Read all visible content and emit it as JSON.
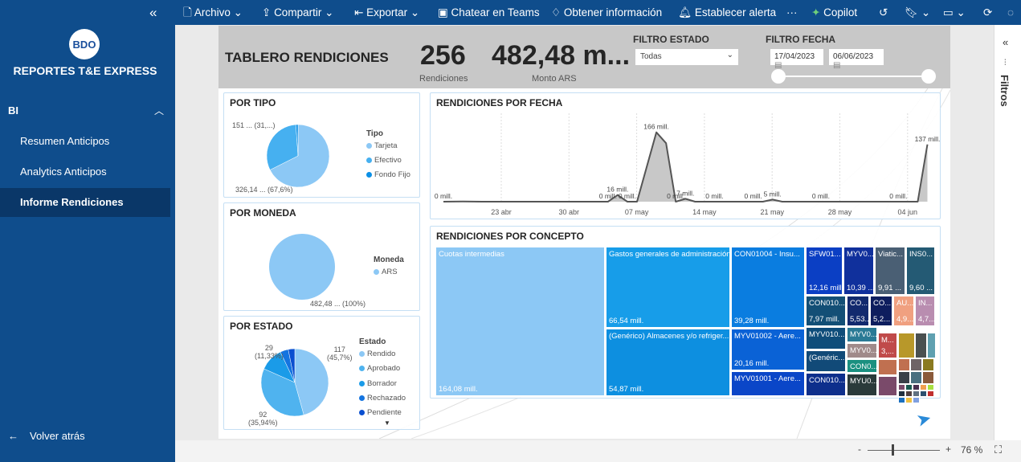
{
  "sidebar": {
    "logo": "BDO",
    "title": "REPORTES T&E EXPRESS",
    "section": "BI",
    "items": [
      {
        "label": "Resumen Anticipos"
      },
      {
        "label": "Analytics Anticipos"
      },
      {
        "label": "Informe Rendiciones",
        "active": true
      }
    ],
    "back": "Volver atrás"
  },
  "toolbar": {
    "archivo": "Archivo",
    "compartir": "Compartir",
    "exportar": "Exportar",
    "teams": "Chatear en Teams",
    "info": "Obtener información",
    "alerta": "Establecer alerta",
    "more": "···",
    "copilot": "Copilot"
  },
  "header": {
    "title": "TABLERO RENDICIONES",
    "kpi1": {
      "value": "256",
      "label": "Rendiciones"
    },
    "kpi2": {
      "value": "482,48 m...",
      "label": "Monto ARS"
    },
    "filtro_estado": {
      "label": "FILTRO ESTADO",
      "value": "Todas"
    },
    "filtro_fecha": {
      "label": "FILTRO FECHA",
      "from": "17/04/2023",
      "to": "06/06/2023"
    }
  },
  "right_pane": {
    "label": "Filtros"
  },
  "bottom": {
    "zoom": "76 %",
    "minus": "-",
    "plus": "+"
  },
  "colors": {
    "brand": "#0f4d8c",
    "pie1": "#8cc8f5",
    "pie2": "#4fb3ef",
    "pie3": "#1a9be8",
    "pie4": "#1474e0",
    "pie5": "#0a4fd0"
  },
  "chart_data": [
    {
      "type": "pie",
      "title": "POR TIPO",
      "legend_title": "Tipo",
      "slices": [
        {
          "name": "Tarjeta",
          "value": 326.14,
          "label": "326,14 ... (67,6%)",
          "color": "#8cc8f5"
        },
        {
          "name": "Efectivo",
          "value": 151,
          "label": "151 ... (31,...)",
          "color": "#46b0f0"
        },
        {
          "name": "Fondo Fijo",
          "value": 5.34,
          "color": "#0a8fe6"
        }
      ]
    },
    {
      "type": "pie",
      "title": "POR MONEDA",
      "legend_title": "Moneda",
      "slices": [
        {
          "name": "ARS",
          "value": 482.48,
          "label": "482,48 ... (100%)",
          "color": "#8cc8f5"
        }
      ]
    },
    {
      "type": "pie",
      "title": "POR ESTADO",
      "legend_title": "Estado",
      "slices": [
        {
          "name": "Rendido",
          "value": 117,
          "label1": "117",
          "label2": "(45,7%)",
          "color": "#8cc8f5"
        },
        {
          "name": "Aprobado",
          "value": 92,
          "label1": "92",
          "label2": "(35,94%)",
          "color": "#4fb3ef"
        },
        {
          "name": "Borrador",
          "value": 29,
          "label1": "29",
          "label2": "(11,33%)",
          "color": "#1a9be8"
        },
        {
          "name": "Rechazado",
          "value": 10,
          "color": "#1474e0"
        },
        {
          "name": "Pendiente",
          "value": 8,
          "color": "#0a4fd0"
        }
      ]
    },
    {
      "type": "area",
      "title": "RENDICIONES POR FECHA",
      "unit": "mill.",
      "x_ticks": [
        "23 abr",
        "30 abr",
        "07 may",
        "14 may",
        "21 may",
        "28 may",
        "04 jun"
      ],
      "points": [
        [
          "2023-04-17",
          0
        ],
        [
          "2023-04-19",
          0.5
        ],
        [
          "2023-04-21",
          0
        ],
        [
          "2023-04-30",
          0
        ],
        [
          "2023-05-04",
          0
        ],
        [
          "2023-05-05",
          16
        ],
        [
          "2023-05-06",
          0
        ],
        [
          "2023-05-07",
          0
        ],
        [
          "2023-05-09",
          166
        ],
        [
          "2023-05-10",
          140
        ],
        [
          "2023-05-11",
          0
        ],
        [
          "2023-05-12",
          7
        ],
        [
          "2023-05-13",
          0
        ],
        [
          "2023-05-20",
          0
        ],
        [
          "2023-05-21",
          5
        ],
        [
          "2023-05-22",
          0
        ],
        [
          "2023-06-05",
          0
        ],
        [
          "2023-06-06",
          137
        ]
      ],
      "data_labels": [
        [
          "2023-04-17",
          "0 mill."
        ],
        [
          "2023-05-04",
          "0 mill."
        ],
        [
          "2023-05-05",
          "16 mill."
        ],
        [
          "2023-05-06",
          "0 mill."
        ],
        [
          "2023-05-09",
          "166 mill."
        ],
        [
          "2023-05-11",
          "0 mill."
        ],
        [
          "2023-05-12",
          "7 mill."
        ],
        [
          "2023-05-15",
          "0 mill."
        ],
        [
          "2023-05-19",
          "0 mill."
        ],
        [
          "2023-05-21",
          "5 mill."
        ],
        [
          "2023-05-26",
          "0 mill."
        ],
        [
          "2023-06-03",
          "0 mill."
        ],
        [
          "2023-06-06",
          "137 mill."
        ]
      ]
    },
    {
      "type": "treemap",
      "title": "RENDICIONES POR CONCEPTO",
      "cells": [
        {
          "name": "Cuotas intermedias",
          "value": "164,08 mill.",
          "color": "#8cc8f5"
        },
        {
          "name": "Gastos generales de administración",
          "value": "66,54 mill.",
          "color": "#179de9"
        },
        {
          "name": "(Genérico) Almacenes y/o refriger...",
          "value": "54,87 mill.",
          "color": "#0d8fe0"
        },
        {
          "name": "CON01004 - Insu...",
          "value": "39,28 mill.",
          "color": "#0a7de0"
        },
        {
          "name": "MYV01002 - Aere...",
          "value": "20,16 mill.",
          "color": "#0a62d6"
        },
        {
          "name": "MYV01001 - Aere...",
          "value": "",
          "color": "#0a46c8"
        },
        {
          "name": "SFW01...",
          "value": "12,16 mill.",
          "color": "#0b3fc4"
        },
        {
          "name": "MYV0...",
          "value": "10,39 ...",
          "color": "#10309c"
        },
        {
          "name": "Viatic...",
          "value": "9,91 ...",
          "color": "#4a5f74"
        },
        {
          "name": "INS0...",
          "value": "9,60 ...",
          "color": "#245a74"
        },
        {
          "name": "CON010...",
          "value": "7,97 mill.",
          "color": "#134f76"
        },
        {
          "name": "CO...",
          "value": "5,53...",
          "color": "#122a6e"
        },
        {
          "name": "CO...",
          "value": "5,2...",
          "color": "#0e1e5e"
        },
        {
          "name": "AU...",
          "value": "4,9...",
          "color": "#f0a080"
        },
        {
          "name": "IN...",
          "value": "4,7...",
          "color": "#b98db0"
        },
        {
          "name": "MYV010...",
          "value": "",
          "color": "#0f4d7a"
        },
        {
          "name": "(Genéric...",
          "value": "",
          "color": "#114a78"
        },
        {
          "name": "CON010...",
          "value": "",
          "color": "#0d2f8c"
        },
        {
          "name": "MYV0...",
          "value": "",
          "color": "#2a7a95"
        },
        {
          "name": "MYV0...",
          "value": "",
          "color": "#a08a8a"
        },
        {
          "name": "CON0...",
          "value": "",
          "color": "#1a9080"
        },
        {
          "name": "MYU0...",
          "value": "",
          "color": "#2a3a3a"
        },
        {
          "name": "M...",
          "value": "3,...",
          "color": "#c04a4a"
        }
      ],
      "small_colors": [
        "#b8982a",
        "#4a5050",
        "#5fa0b0",
        "#c07050",
        "#6e6466",
        "#8a7a20",
        "#3a4048",
        "#4a7080",
        "#8a5a3a",
        "#7a4a6a",
        "#1a5a50",
        "#4a3050",
        "#f0a050",
        "#a8e040",
        "#203040",
        "#504040",
        "#607080",
        "#2a5070",
        "#c03030",
        "#1a70c0",
        "#f0c040",
        "#80a0e0"
      ]
    }
  ]
}
